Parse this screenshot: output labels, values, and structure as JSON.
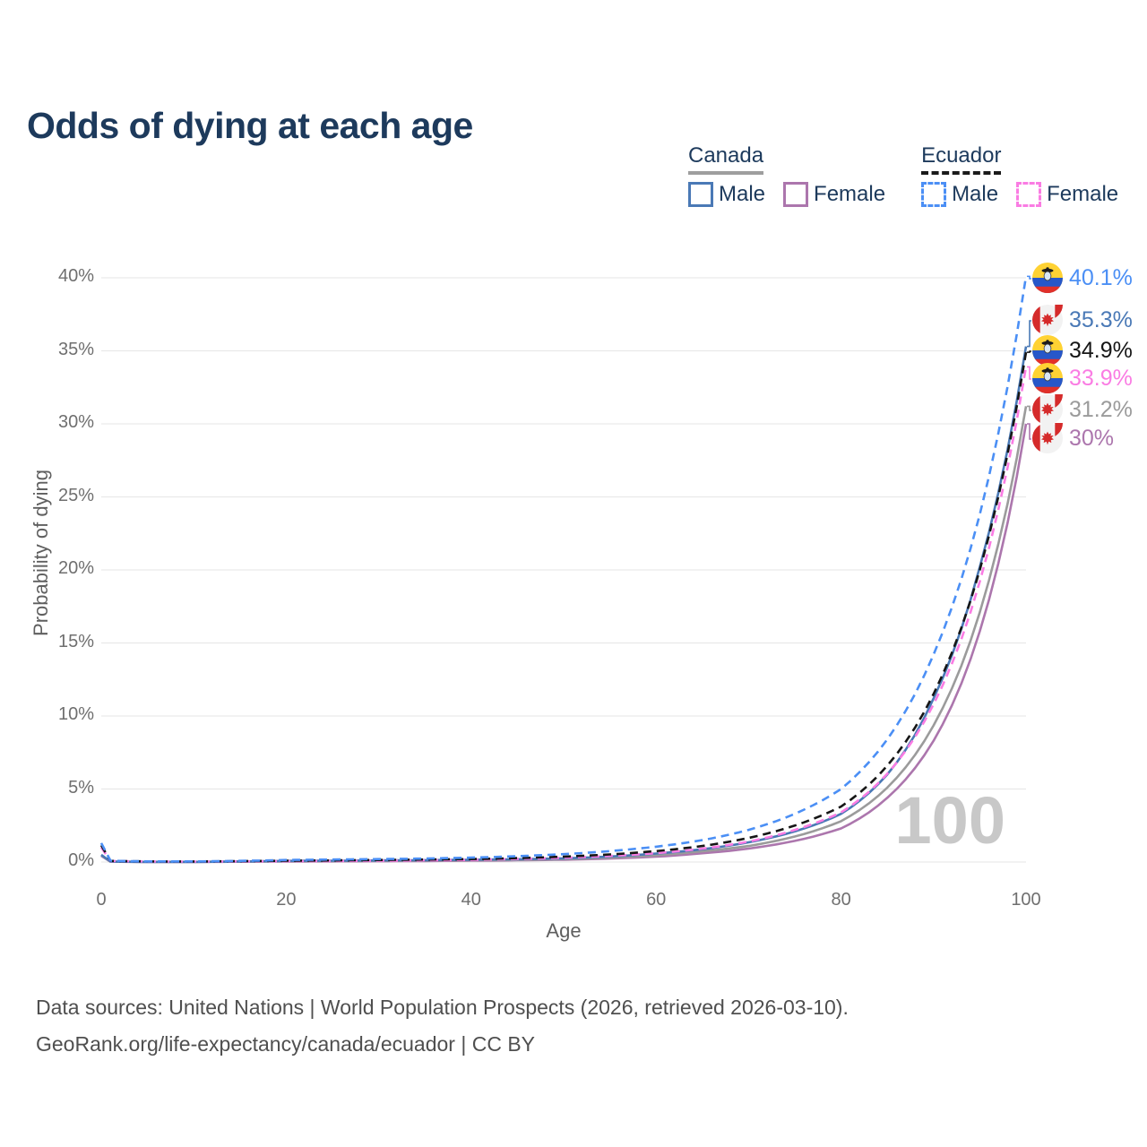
{
  "title": "Odds of dying at each age",
  "legend": {
    "groups": [
      {
        "label": "Canada",
        "underline": {
          "style": "solid",
          "color": "#9e9e9e"
        },
        "items": [
          {
            "label": "Male",
            "color": "#4a79b6",
            "dash": false
          },
          {
            "label": "Female",
            "color": "#ac76ad",
            "dash": false
          }
        ]
      },
      {
        "label": "Ecuador",
        "underline": {
          "style": "dashed",
          "color": "#1a1a1a"
        },
        "items": [
          {
            "label": "Male",
            "color": "#4b8ff5",
            "dash": true
          },
          {
            "label": "Female",
            "color": "#fa7ce3",
            "dash": true
          }
        ]
      }
    ]
  },
  "chart_data": {
    "type": "line",
    "title": "Odds of dying at each age",
    "xlabel": "Age",
    "ylabel": "Probability of dying",
    "xlim": [
      0,
      100
    ],
    "ylim": [
      0,
      40
    ],
    "x_ticks": [
      0,
      20,
      40,
      60,
      80,
      100
    ],
    "y_ticks": [
      "0%",
      "5%",
      "10%",
      "15%",
      "20%",
      "25%",
      "30%",
      "35%",
      "40%"
    ],
    "grid": "horizontal",
    "legend_position": "top-right",
    "watermark": "100",
    "x": [
      0,
      1,
      5,
      10,
      15,
      20,
      25,
      30,
      35,
      40,
      45,
      50,
      55,
      60,
      65,
      70,
      75,
      80,
      85,
      90,
      95,
      100
    ],
    "series": [
      {
        "name": "Ecuador Male",
        "country": "ecuador",
        "sex": "male",
        "color": "#4b8ff5",
        "dash": true,
        "end_label": "40.1%",
        "end_value": 40.1,
        "values": [
          1.3,
          0.09,
          0.045,
          0.04,
          0.08,
          0.14,
          0.17,
          0.2,
          0.24,
          0.3,
          0.4,
          0.54,
          0.75,
          1.05,
          1.5,
          2.2,
          3.3,
          5.0,
          8.4,
          14.2,
          23.8,
          40.1
        ]
      },
      {
        "name": "Canada Male",
        "country": "canada",
        "sex": "male",
        "color": "#4a79b6",
        "dash": false,
        "end_label": "35.3%",
        "end_value": 35.3,
        "values": [
          0.5,
          0.03,
          0.012,
          0.012,
          0.04,
          0.08,
          0.09,
          0.11,
          0.13,
          0.16,
          0.19,
          0.25,
          0.38,
          0.58,
          0.88,
          1.35,
          2.1,
          3.3,
          6.0,
          11.2,
          20.2,
          35.3
        ]
      },
      {
        "name": "Ecuador Both sexes",
        "country": "ecuador",
        "sex": "all",
        "color": "#161616",
        "dash": true,
        "end_label": "34.9%",
        "end_value": 34.9,
        "values": [
          1.15,
          0.08,
          0.04,
          0.035,
          0.06,
          0.09,
          0.11,
          0.14,
          0.17,
          0.2,
          0.27,
          0.37,
          0.52,
          0.75,
          1.1,
          1.65,
          2.5,
          3.8,
          6.6,
          11.5,
          20.0,
          34.9
        ]
      },
      {
        "name": "Ecuador Female",
        "country": "ecuador",
        "sex": "female",
        "color": "#fa7ce3",
        "dash": true,
        "end_label": "33.9%",
        "end_value": 33.9,
        "values": [
          1.0,
          0.07,
          0.035,
          0.03,
          0.04,
          0.06,
          0.07,
          0.09,
          0.12,
          0.15,
          0.21,
          0.29,
          0.42,
          0.61,
          0.92,
          1.4,
          2.2,
          3.4,
          6.05,
          10.8,
          19.2,
          33.9
        ]
      },
      {
        "name": "Canada Both sexes",
        "country": "canada",
        "sex": "all",
        "color": "#9b9b9b",
        "dash": false,
        "end_label": "31.2%",
        "end_value": 31.2,
        "values": [
          0.46,
          0.027,
          0.01,
          0.01,
          0.03,
          0.06,
          0.07,
          0.08,
          0.1,
          0.12,
          0.15,
          0.2,
          0.3,
          0.47,
          0.74,
          1.1,
          1.75,
          2.8,
          5.1,
          9.35,
          17.1,
          31.2
        ]
      },
      {
        "name": "Canada Female",
        "country": "canada",
        "sex": "female",
        "color": "#ac76ad",
        "dash": false,
        "end_label": "30%",
        "end_value": 30.0,
        "values": [
          0.42,
          0.024,
          0.009,
          0.009,
          0.02,
          0.035,
          0.045,
          0.055,
          0.07,
          0.09,
          0.12,
          0.16,
          0.24,
          0.37,
          0.6,
          0.92,
          1.45,
          2.3,
          4.4,
          8.3,
          15.8,
          30.0
        ]
      }
    ]
  },
  "footer": {
    "line1": "Data sources: United Nations | World Population Prospects (2026, retrieved 2026-03-10).",
    "line2": "GeoRank.org/life-expectancy/canada/ecuador | CC BY"
  }
}
